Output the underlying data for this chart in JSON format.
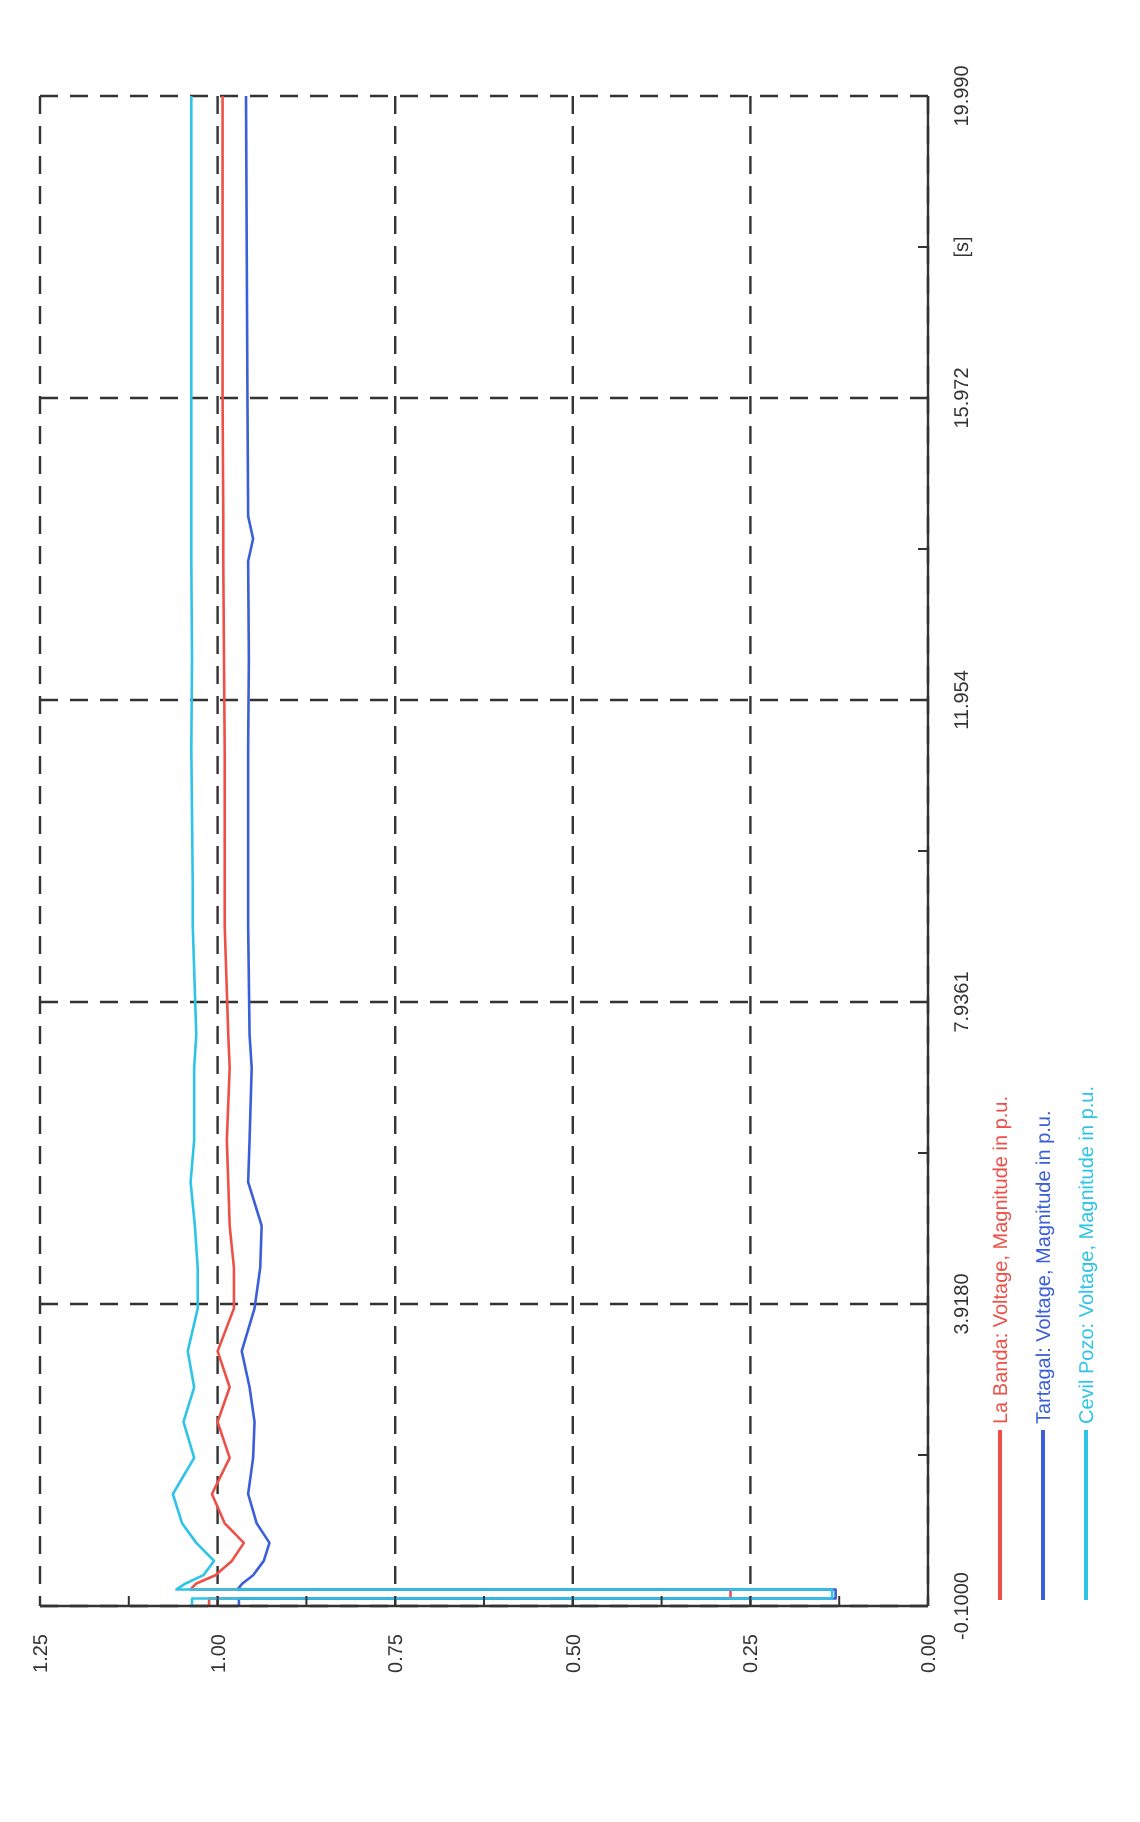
{
  "chart_data": {
    "type": "line",
    "ylabel": "[s]",
    "series": [
      {
        "name": "La Banda: Voltage, Magnitude in p.u.",
        "color": "#ee5048",
        "x": [
          1.012,
          1.012,
          0.278,
          0.278,
          1.038,
          1.03,
          1.003,
          0.98,
          0.963,
          0.99,
          1.008,
          0.983,
          1.0,
          0.983,
          1.0,
          0.977,
          0.977,
          0.983,
          0.985,
          0.987,
          0.983,
          0.985,
          0.99,
          0.99,
          0.99,
          0.991,
          0.992,
          0.992,
          0.992,
          0.993,
          0.993
        ],
        "values": [
          -0.1,
          0,
          0,
          0.12,
          0.12,
          0.2,
          0.31,
          0.5,
          0.74,
          1.0,
          1.39,
          1.87,
          2.35,
          2.81,
          3.29,
          3.86,
          4.4,
          4.96,
          5.54,
          6.1,
          7.06,
          7.5,
          8.95,
          9.5,
          11.3,
          12.5,
          13.8,
          14.1,
          14.4,
          16,
          19.99
        ]
      },
      {
        "name": "Tartagal: Voltage, Magnitude in p.u.",
        "color": "#3a5fd9",
        "x": [
          0.97,
          0.97,
          0.13,
          0.13,
          0.972,
          0.965,
          0.95,
          0.935,
          0.927,
          0.945,
          0.957,
          0.95,
          0.948,
          0.955,
          0.966,
          0.948,
          0.94,
          0.938,
          0.957,
          0.955,
          0.952,
          0.955,
          0.957,
          0.957,
          0.957,
          0.956,
          0.957,
          0.95,
          0.957,
          0.958,
          0.96
        ],
        "values": [
          -0.1,
          0,
          0,
          0.12,
          0.12,
          0.2,
          0.31,
          0.5,
          0.74,
          1.0,
          1.39,
          1.87,
          2.35,
          2.81,
          3.29,
          3.86,
          4.4,
          4.96,
          5.54,
          6.1,
          7.06,
          7.5,
          8.95,
          9.5,
          11.3,
          12.5,
          13.8,
          14.1,
          14.4,
          16,
          19.99
        ]
      },
      {
        "name": "Cevil Pozo: Voltage, Magnitude in p.u.",
        "color": "#2ec4e8",
        "x": [
          1.036,
          1.036,
          0.135,
          0.135,
          1.058,
          1.045,
          1.02,
          1.005,
          1.03,
          1.05,
          1.063,
          1.033,
          1.048,
          1.033,
          1.042,
          1.028,
          1.028,
          1.032,
          1.038,
          1.033,
          1.033,
          1.03,
          1.035,
          1.035,
          1.037,
          1.036,
          1.037,
          1.037,
          1.037,
          1.037,
          1.037
        ],
        "values": [
          -0.1,
          0,
          0,
          0.12,
          0.12,
          0.2,
          0.31,
          0.5,
          0.74,
          1.0,
          1.39,
          1.87,
          2.35,
          2.81,
          3.29,
          3.86,
          4.4,
          4.96,
          5.54,
          6.1,
          7.06,
          7.5,
          8.95,
          9.5,
          11.3,
          12.5,
          13.8,
          14.1,
          14.4,
          16,
          19.99
        ]
      }
    ],
    "xlim": [
      1.25,
      0
    ],
    "ylim": [
      -0.1,
      19.99
    ],
    "xticks": [
      {
        "value": 1.25,
        "label": "1.25"
      },
      {
        "value": 1.125,
        "label": null
      },
      {
        "value": 1,
        "label": "1.00"
      },
      {
        "value": 0.875,
        "label": null
      },
      {
        "value": 0.75,
        "label": "0.75"
      },
      {
        "value": 0.625,
        "label": null
      },
      {
        "value": 0.5,
        "label": "0.50"
      },
      {
        "value": 0.375,
        "label": null
      },
      {
        "value": 0.25,
        "label": "0.25"
      },
      {
        "value": 0.125,
        "label": null
      },
      {
        "value": 0,
        "label": "0.00"
      }
    ],
    "yticks": [
      {
        "value": -0.1,
        "label": "-0.1000"
      },
      {
        "value": 1.909,
        "label": null
      },
      {
        "value": 3.918,
        "label": "3.9180"
      },
      {
        "value": 5.927,
        "label": null
      },
      {
        "value": 7.9361,
        "label": "7.9361"
      },
      {
        "value": 9.945,
        "label": null
      },
      {
        "value": 11.954,
        "label": "11.954"
      },
      {
        "value": 13.963,
        "label": null
      },
      {
        "value": 15.972,
        "label": "15.972"
      },
      {
        "value": 17.981,
        "label": null
      },
      {
        "value": 19.99,
        "label": "19.990"
      }
    ],
    "grid": true,
    "legend": "right",
    "line_style": "solid"
  }
}
